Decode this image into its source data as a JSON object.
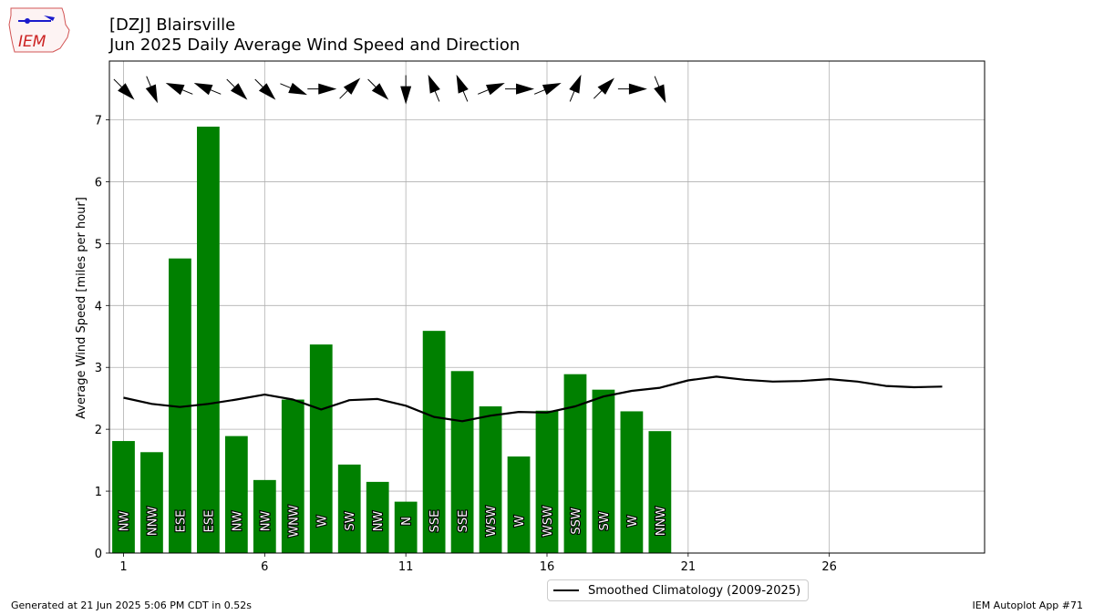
{
  "header": {
    "station": "[DZJ] Blairsville",
    "subtitle": "Jun 2025 Daily Average Wind Speed and Direction",
    "logo_text": "IEM"
  },
  "footer": {
    "generated": "Generated at 21 Jun 2025 5:06 PM CDT in 0.52s",
    "app": "IEM Autoplot App #71"
  },
  "chart_data": {
    "type": "bar",
    "title": "[DZJ] Blairsville",
    "subtitle": "Jun 2025 Daily Average Wind Speed and Direction",
    "xlabel": "",
    "ylabel": "Average Wind Speed [miles per hour]",
    "xlim": [
      0.5,
      31.5
    ],
    "ylim": [
      0,
      7.95
    ],
    "xticks": [
      1,
      6,
      11,
      16,
      21,
      26
    ],
    "yticks": [
      0,
      1,
      2,
      3,
      4,
      5,
      6,
      7
    ],
    "grid": true,
    "legend_position": "bottom-center",
    "bar_color": "#008000",
    "days": [
      1,
      2,
      3,
      4,
      5,
      6,
      7,
      8,
      9,
      10,
      11,
      12,
      13,
      14,
      15,
      16,
      17,
      18,
      19,
      20
    ],
    "speeds": [
      1.81,
      1.63,
      4.76,
      6.89,
      1.89,
      1.18,
      2.48,
      3.37,
      1.43,
      1.15,
      0.83,
      3.59,
      2.94,
      2.37,
      1.56,
      2.3,
      2.89,
      2.64,
      2.29,
      1.97
    ],
    "directions": [
      "NW",
      "NNW",
      "ESE",
      "ESE",
      "NW",
      "NW",
      "WNW",
      "W",
      "SW",
      "NW",
      "N",
      "SSE",
      "SSE",
      "WSW",
      "W",
      "WSW",
      "SSW",
      "SW",
      "W",
      "NNW"
    ],
    "series": [
      {
        "name": "Smoothed Climatology (2009-2025)",
        "x": [
          1,
          2,
          3,
          4,
          5,
          6,
          7,
          8,
          9,
          10,
          11,
          12,
          13,
          14,
          15,
          16,
          17,
          18,
          19,
          20,
          21,
          22,
          23,
          24,
          25,
          26,
          27,
          28,
          29,
          30
        ],
        "values": [
          2.51,
          2.41,
          2.36,
          2.41,
          2.48,
          2.56,
          2.48,
          2.32,
          2.47,
          2.49,
          2.38,
          2.2,
          2.13,
          2.22,
          2.28,
          2.27,
          2.37,
          2.53,
          2.62,
          2.67,
          2.79,
          2.85,
          2.8,
          2.77,
          2.78,
          2.81,
          2.77,
          2.7,
          2.68,
          2.69
        ]
      }
    ]
  }
}
